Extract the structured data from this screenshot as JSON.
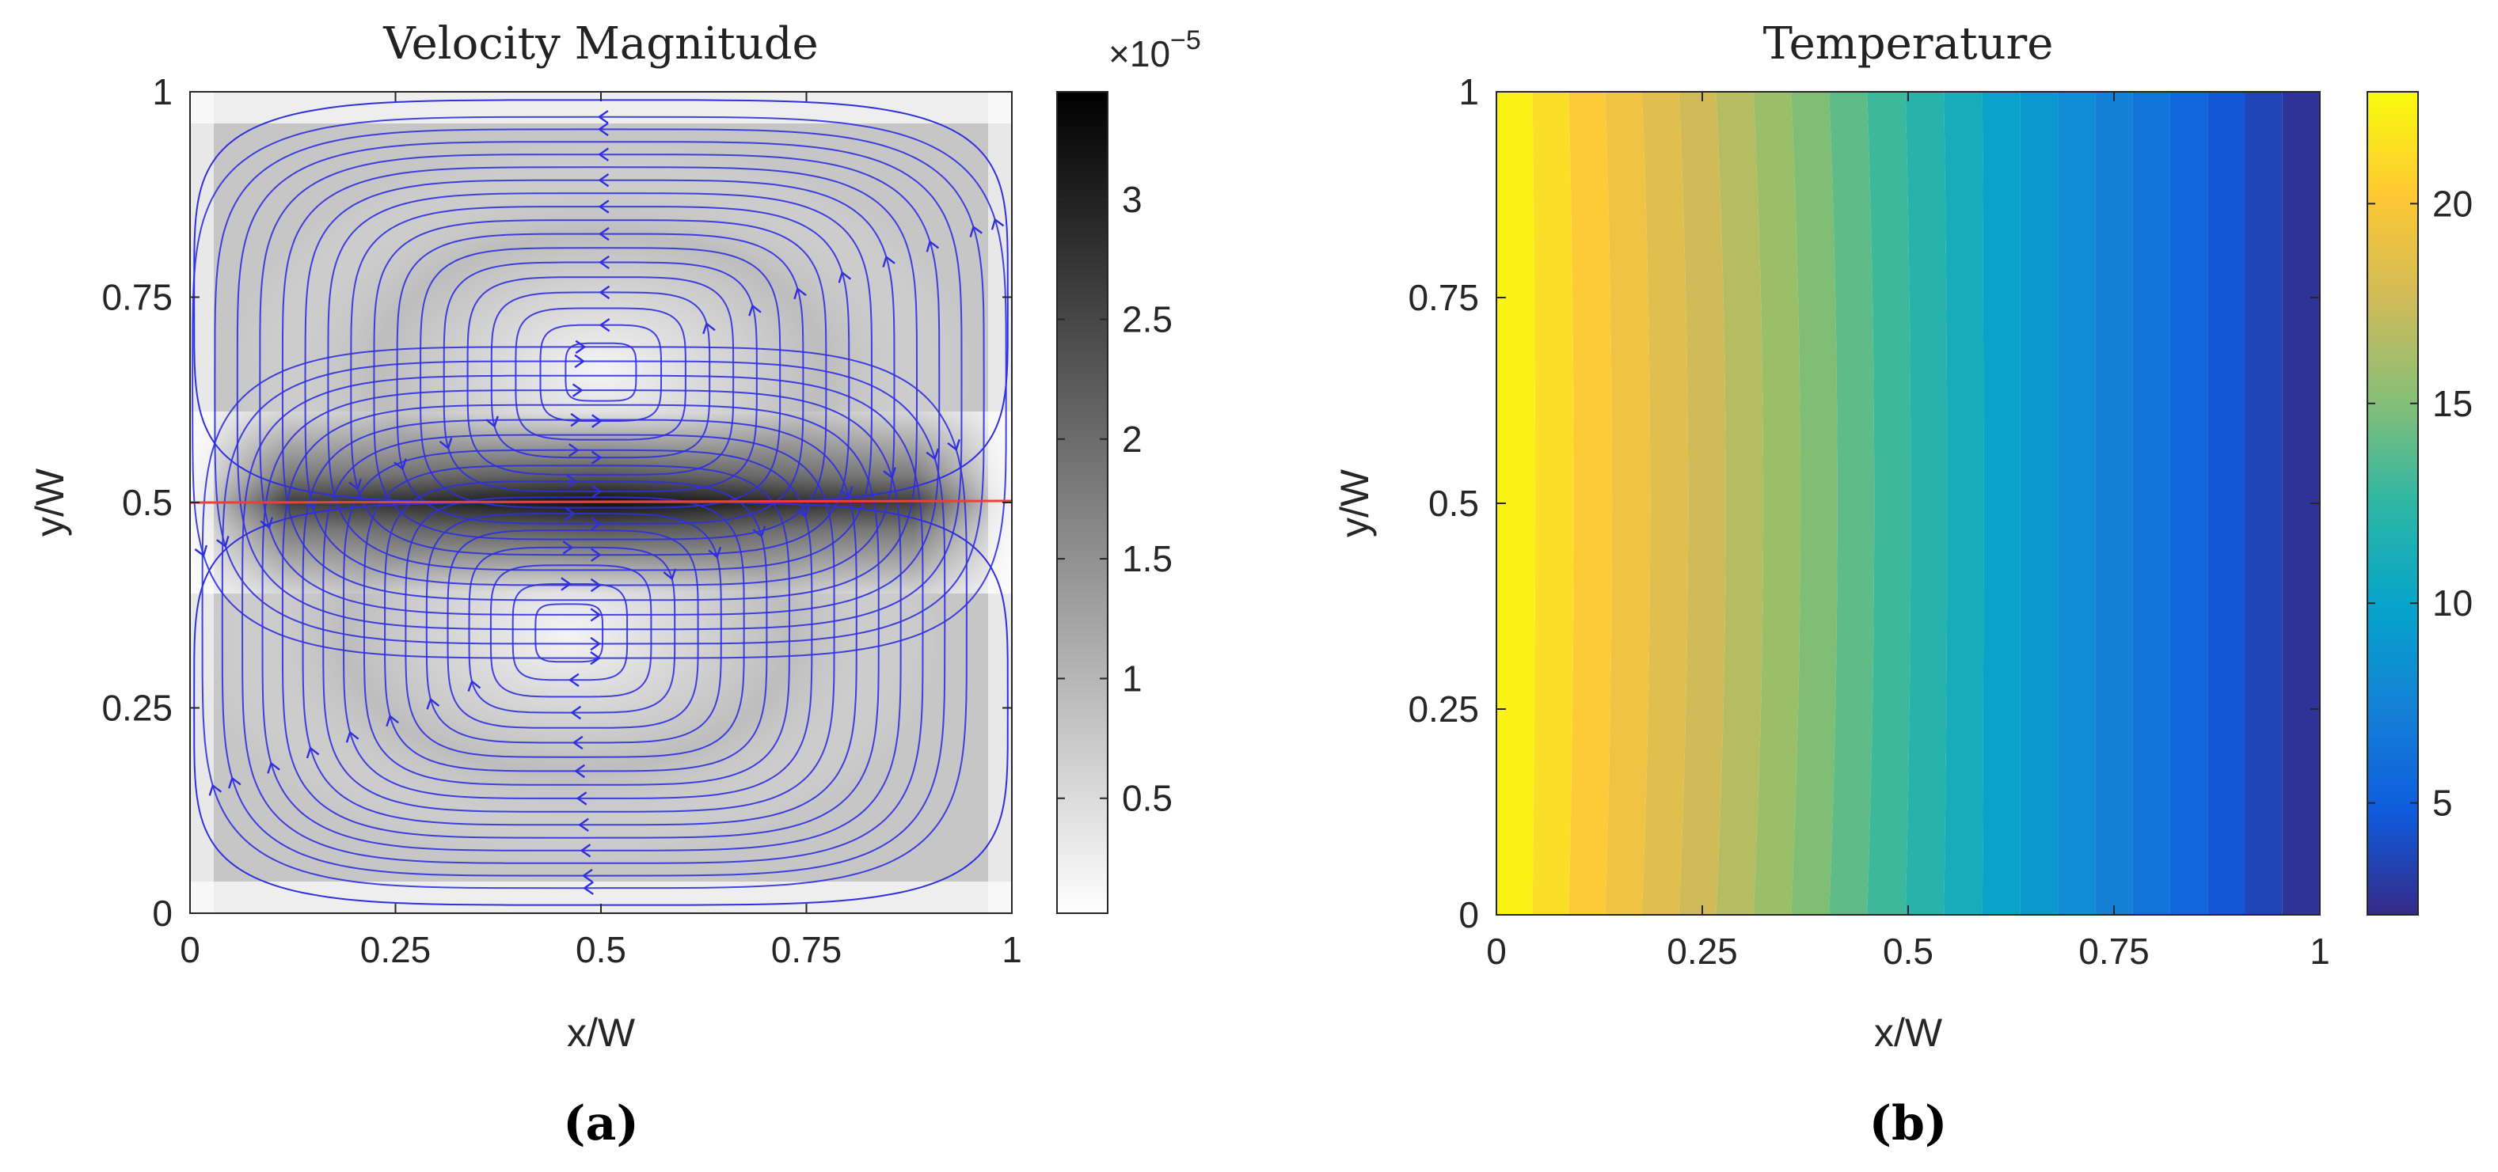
{
  "panels": [
    {
      "id": "a",
      "panel_label": "(a)",
      "colorbar_exponent_base": "×10",
      "colorbar_exponent_power": "−5"
    },
    {
      "id": "b",
      "panel_label": "(b)"
    }
  ],
  "chart_data": [
    {
      "type": "heatmap",
      "title": "Velocity Magnitude",
      "xlabel": "x/W",
      "ylabel": "y/W",
      "xlim": [
        0,
        1
      ],
      "ylim": [
        0,
        1
      ],
      "xticks": [
        0,
        0.25,
        0.5,
        0.75,
        1
      ],
      "xtick_labels": [
        "0",
        "0.25",
        "0.5",
        "0.75",
        "1"
      ],
      "yticks": [
        0,
        0.25,
        0.5,
        0.75,
        1
      ],
      "ytick_labels": [
        "0",
        "0.25",
        "0.5",
        "0.75",
        "1"
      ],
      "colormap": "gray (reversed: white = low, black = high)",
      "colorbar": {
        "range": [
          0.02,
          3.45
        ],
        "ticks": [
          0.5,
          1,
          1.5,
          2,
          2.5,
          3
        ],
        "tick_labels": [
          "0.5",
          "1",
          "1.5",
          "2",
          "2.5",
          "3"
        ],
        "scale_factor": 1e-05
      },
      "vortices": [
        {
          "center": [
            0.5,
            0.66
          ],
          "rotation": "counter-clockwise",
          "name": "upper cell"
        },
        {
          "center": [
            0.46,
            0.34
          ],
          "rotation": "clockwise",
          "name": "lower cell"
        }
      ],
      "max_velocity_line": {
        "y": 0.5,
        "color": "#e8403a"
      },
      "streamline_color": "#2f2fe0"
    },
    {
      "type": "heatmap",
      "title": "Temperature",
      "xlabel": "x/W",
      "ylabel": "y/W",
      "xlim": [
        0,
        1
      ],
      "ylim": [
        0,
        1
      ],
      "xticks": [
        0,
        0.25,
        0.5,
        0.75,
        1
      ],
      "xtick_labels": [
        "0",
        "0.25",
        "0.5",
        "0.75",
        "1"
      ],
      "yticks": [
        0,
        0.25,
        0.5,
        0.75,
        1
      ],
      "ytick_labels": [
        "0",
        "0.25",
        "0.5",
        "0.75",
        "1"
      ],
      "colormap": "parula",
      "colorbar": {
        "range": [
          2.2,
          22.8
        ],
        "ticks": [
          5,
          10,
          15,
          20
        ],
        "tick_labels": [
          "5",
          "10",
          "15",
          "20"
        ]
      },
      "profile": "temperature decreases roughly linearly from ~22.8 at x/W=0 to ~2.2 at x/W=1, with slight bowing near the center height",
      "contour_levels": 22
    }
  ]
}
